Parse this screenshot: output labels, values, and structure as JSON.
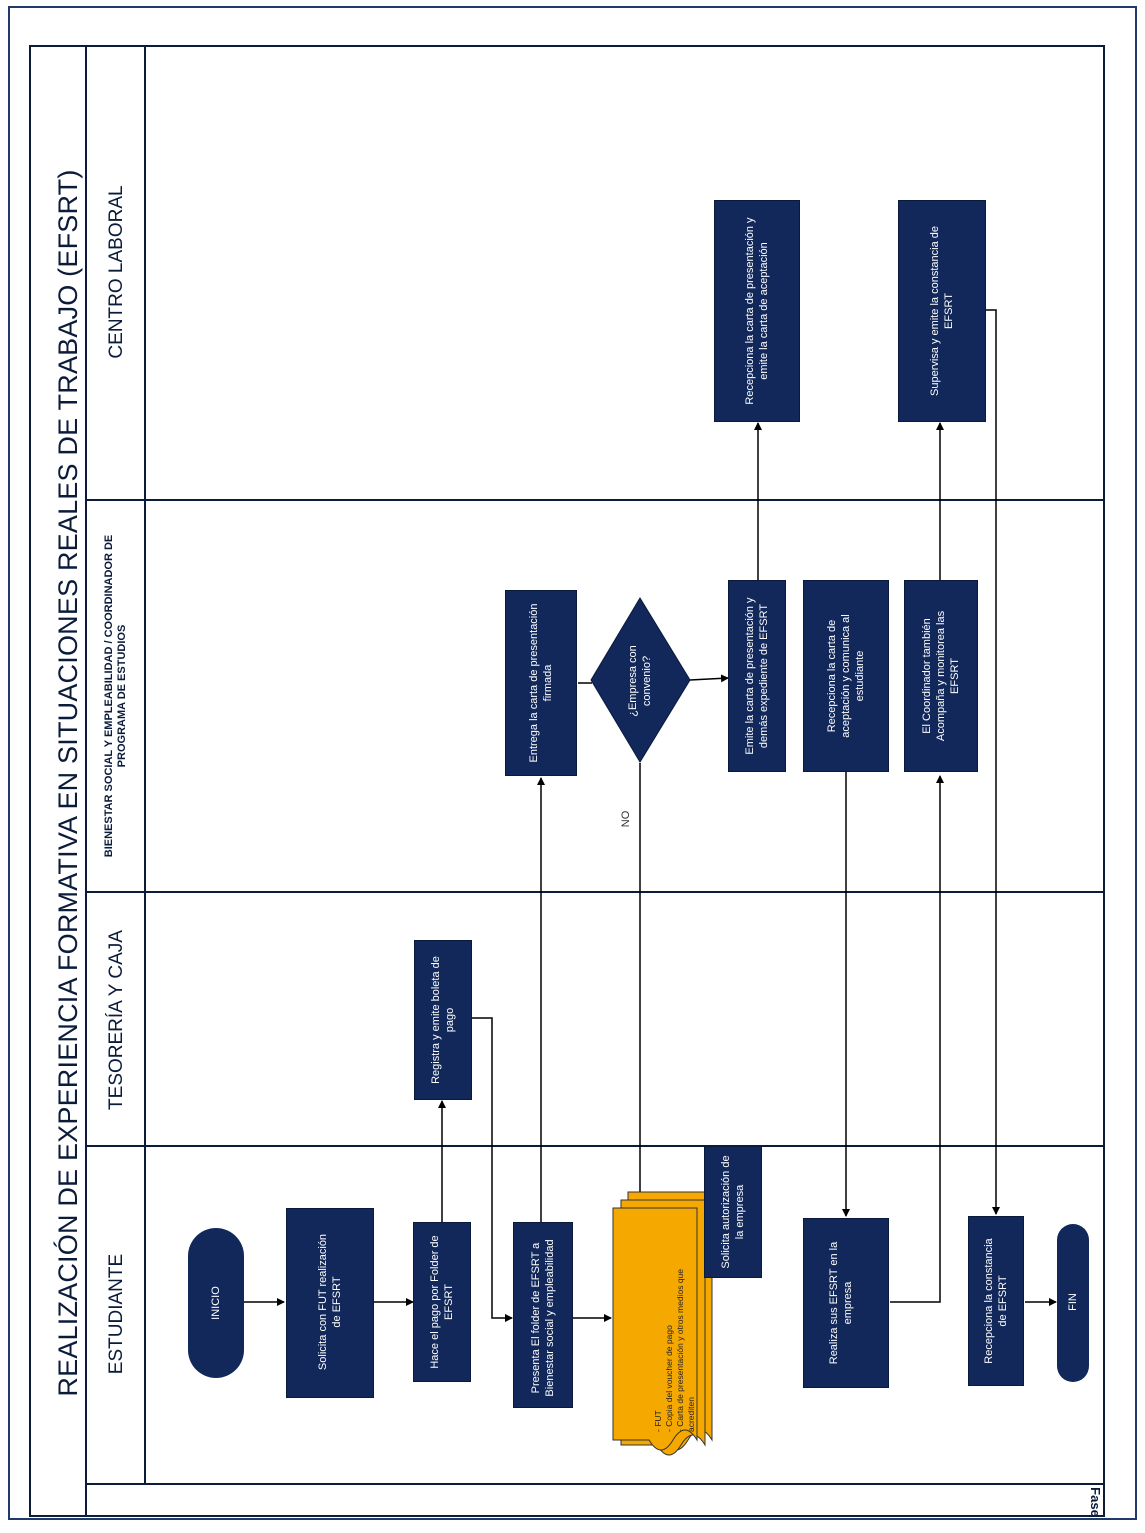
{
  "title": "REALIZACIÓN DE EXPERIENCIA FORMATIVA EN SITUACIONES REALES DE TRABAJO (EFSRT)",
  "lanes": {
    "estudiante": "ESTUDIANTE",
    "tesoreria": "TESORERÍA Y CAJA",
    "bienestar": "BIENESTAR SOCIAL Y EMPLEABILIDAD / COORDINADOR DE PROGRAMA DE ESTUDIOS",
    "centro": "CENTRO LABORAL"
  },
  "fase_label": "Fase",
  "nodes": {
    "inicio": "INICIO",
    "solicita_fut": "Solicita con FUT realización de EFSRT",
    "hace_pago": "Hace el pago por Folder de EFSRT",
    "presenta_folder": "Presenta El folder de EFSRT a Bienestar social y empleabilidad",
    "documentos": "- FUT\n- Copia del voucher de pago\n- Carta de presentación y otros medios que acrediten",
    "solicita_autorizacion": "Solicita autorización de la empresa",
    "realiza_efsrt": "Realiza sus EFSRT en la empresa",
    "recepciona_constancia": "Recepciona la constancia de EFSRT",
    "fin": "FIN",
    "registra_boleta": "Registra y emite boleta de pago",
    "entrega_carta": "Entrega la carta de presentación firmada",
    "decision": "¿Empresa con convenio?",
    "decision_no": "NO",
    "emite_carta": "Emite la carta de presentación y demás expediente de EFSRT",
    "recepciona_aceptacion": "Recepciona la carta de aceptación y comunica al estudiante",
    "coordinador": "El Coordinador también Acompaña y monitorea las EFSRT",
    "recepciona_carta_centro": "Recepciona la carta de presentación y emite la carta de aceptación",
    "supervisa": "Supervisa y emite la constancia de EFSRT"
  },
  "colors": {
    "process": "#12285a",
    "document": "#f5a800",
    "line": "#000000"
  }
}
